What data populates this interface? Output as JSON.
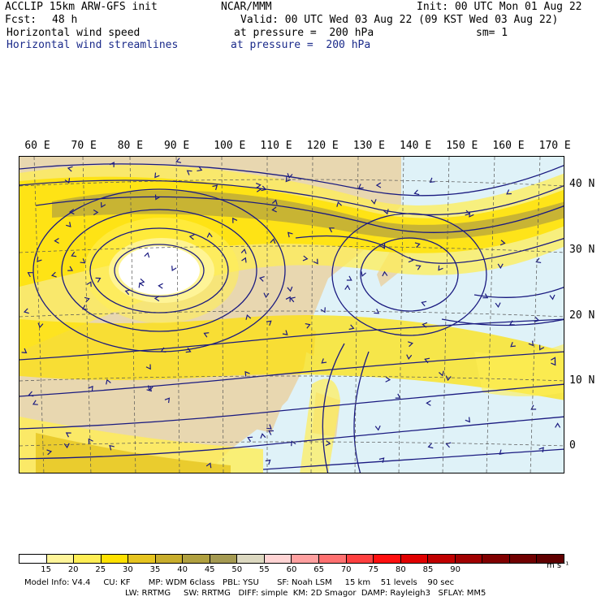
{
  "header": {
    "model": "ACCLIP 15km ARW-GFS init",
    "center": "NCAR/MMM",
    "init": "Init: 00 UTC Mon 01 Aug 22",
    "fcst_label": "Fcst:",
    "fcst_value": "48 h",
    "valid": "Valid: 00 UTC Wed 03 Aug 22 (09 KST Wed 03 Aug 22)",
    "field1": "Horizontal wind speed",
    "field1_level": "at pressure =  200 hPa",
    "sm": "sm= 1",
    "field2": "Horizontal wind streamlines",
    "field2_level": "at pressure =  200 hPa"
  },
  "map": {
    "lon_labels": [
      "60 E",
      "70 E",
      "80 E",
      "90 E",
      "100 E",
      "110 E",
      "120 E",
      "130 E",
      "140 E",
      "150 E",
      "160 E",
      "170 E"
    ],
    "lat_labels": [
      "40 N",
      "30 N",
      "20 N",
      "10 N",
      "0"
    ],
    "lat_values": [
      40,
      30,
      20,
      10,
      0
    ],
    "ocean_color": "#dff2f8",
    "land_color": "#e8d7b0",
    "streamline_color": "#1a1a80"
  },
  "colorbar": {
    "colors": [
      "#ffffff",
      "#fff59a",
      "#ffee55",
      "#ffe100",
      "#e6c420",
      "#c8ad2c",
      "#b0a040",
      "#a59a52",
      "#dcd8c0",
      "#ffd4d4",
      "#ffa0a0",
      "#ff7070",
      "#ff4040",
      "#ff1010",
      "#e00000",
      "#c00000",
      "#a00000",
      "#800000",
      "#700000",
      "#600000"
    ],
    "labels": [
      "15",
      "20",
      "25",
      "30",
      "35",
      "40",
      "45",
      "50",
      "55",
      "60",
      "65",
      "70",
      "75",
      "80",
      "85",
      "90"
    ],
    "units": "m s⁻¹"
  },
  "footer": {
    "line1": "Model Info: V4.4     CU: KF       MP: WDM 6class   PBL: YSU       SF: Noah LSM     15 km    51 levels    90 sec",
    "line2": "LW: RRTMG     SW: RRTMG   DIFF: simple  KM: 2D Smagor  DAMP: Rayleigh3   SFLAY: MM5"
  }
}
